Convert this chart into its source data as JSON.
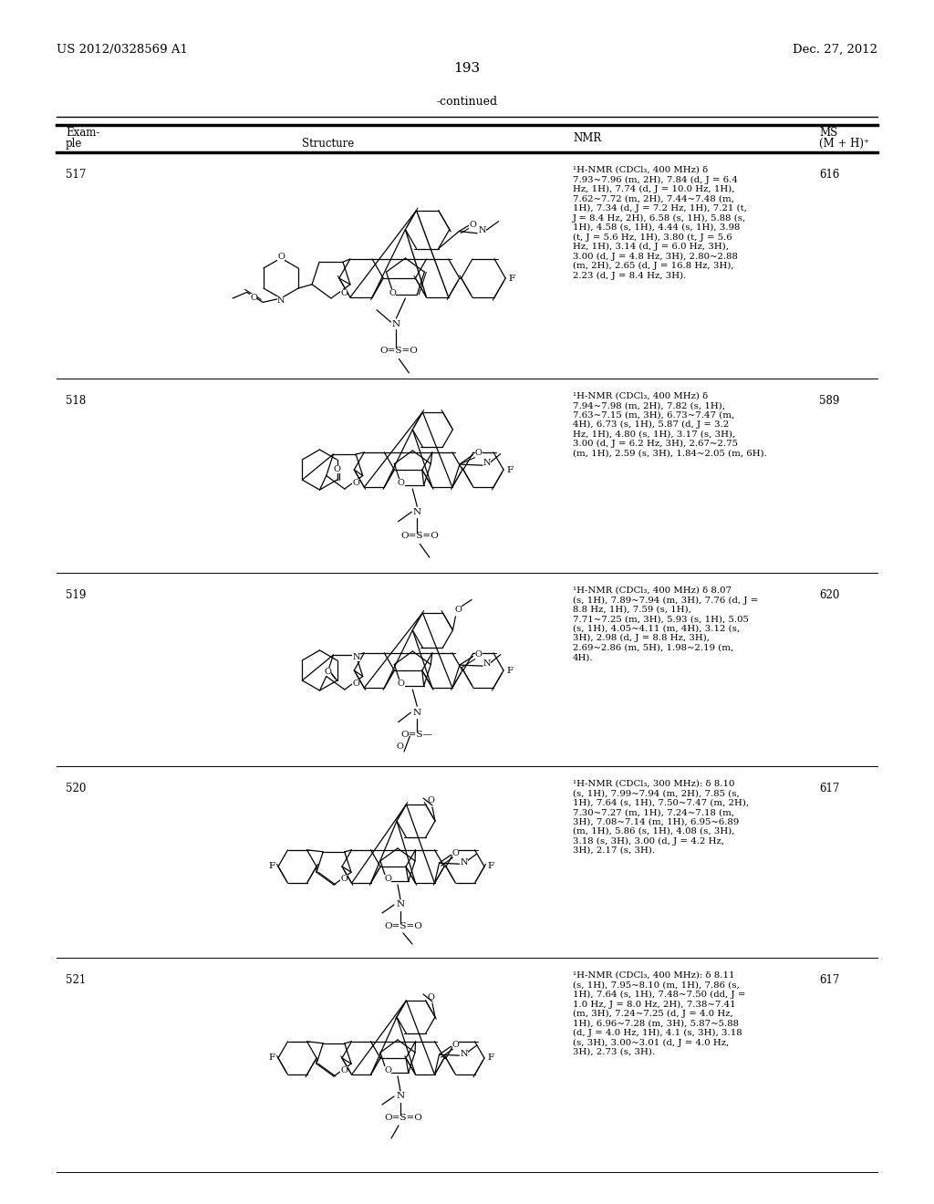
{
  "page_header_left": "US 2012/0328569 A1",
  "page_header_right": "Dec. 27, 2012",
  "page_number": "193",
  "continued_label": "-continued",
  "background_color": "#ffffff",
  "text_color": "#000000",
  "rows": [
    {
      "example": "517",
      "nmr": "¹H-NMR (CDCl₃, 400 MHz) δ\n7.93~7.96 (m, 2H), 7.84 (d, J = 6.4\nHz, 1H), 7.74 (d, J = 10.0 Hz, 1H),\n7.62~7.72 (m, 2H), 7.44~7.48 (m,\n1H), 7.34 (d, J = 7.2 Hz, 1H), 7.21 (t,\nJ = 8.4 Hz, 2H), 6.58 (s, 1H), 5.88 (s,\n1H), 4.58 (s, 1H), 4.44 (s, 1H), 3.98\n(t, J = 5.6 Hz, 1H), 3.80 (t, J = 5.6\nHz, 1H), 3.14 (d, J = 6.0 Hz, 3H),\n3.00 (d, J = 4.8 Hz, 3H), 2.80~2.88\n(m, 2H), 2.65 (d, J = 16.8 Hz, 3H),\n2.23 (d, J = 8.4 Hz, 3H).",
      "ms": "616"
    },
    {
      "example": "518",
      "nmr": "¹H-NMR (CDCl₃, 400 MHz) δ\n7.94~7.98 (m, 2H), 7.82 (s, 1H),\n7.63~7.15 (m, 3H), 6.73~7.47 (m,\n4H), 6.73 (s, 1H), 5.87 (d, J = 3.2\nHz, 1H), 4.80 (s, 1H), 3.17 (s, 3H),\n3.00 (d, J = 6.2 Hz, 3H), 2.67~2.75\n(m, 1H), 2.59 (s, 3H), 1.84~2.05 (m, 6H).",
      "ms": "589"
    },
    {
      "example": "519",
      "nmr": "¹H-NMR (CDCl₃, 400 MHz) δ 8.07\n(s, 1H), 7.89~7.94 (m, 3H), 7.76 (d, J =\n8.8 Hz, 1H), 7.59 (s, 1H),\n7.71~7.25 (m, 3H), 5.93 (s, 1H), 5.05\n(s, 1H), 4.05~4.11 (m, 4H), 3.12 (s,\n3H), 2.98 (d, J = 8.8 Hz, 3H),\n2.69~2.86 (m, 5H), 1.98~2.19 (m,\n4H).",
      "ms": "620"
    },
    {
      "example": "520",
      "nmr": "¹H-NMR (CDCl₃, 300 MHz): δ 8.10\n(s, 1H), 7.99~7.94 (m, 2H), 7.85 (s,\n1H), 7.64 (s, 1H), 7.50~7.47 (m, 2H),\n7.30~7.27 (m, 1H), 7.24~7.18 (m,\n3H), 7.08~7.14 (m, 1H), 6.95~6.89\n(m, 1H), 5.86 (s, 1H), 4.08 (s, 3H),\n3.18 (s, 3H), 3.00 (d, J = 4.2 Hz,\n3H), 2.17 (s, 3H).",
      "ms": "617"
    },
    {
      "example": "521",
      "nmr": "¹H-NMR (CDCl₃, 400 MHz): δ 8.11\n(s, 1H), 7.95~8.10 (m, 1H), 7.86 (s,\n1H), 7.64 (s, 1H), 7.48~7.50 (dd, J =\n1.0 Hz, J = 8.0 Hz, 2H), 7.38~7.41\n(m, 3H), 7.24~7.25 (d, J = 4.0 Hz,\n1H), 6.96~7.28 (m, 3H), 5.87~5.88\n(d, J = 4.0 Hz, 1H), 4.1 (s, 3H), 3.18\n(s, 3H), 3.00~3.01 (d, J = 4.0 Hz,\n3H), 2.73 (s, 3H).",
      "ms": "617"
    }
  ]
}
